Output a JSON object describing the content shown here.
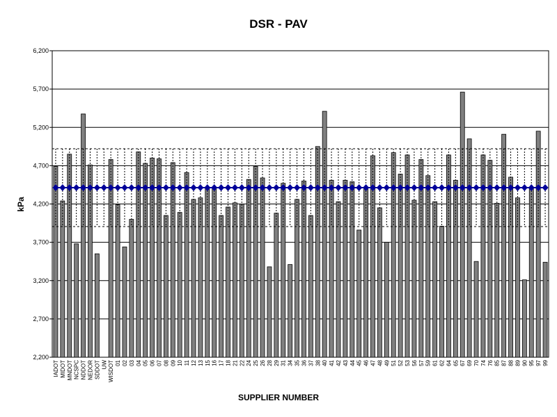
{
  "chart_data": {
    "type": "bar",
    "title": "DSR - PAV",
    "xlabel": "SUPPLIER NUMBER",
    "ylabel": "kPa",
    "categories": [
      "IADOT",
      "MIDOT",
      "MNDOT",
      "NCSPC",
      "NDDOT",
      "NEDOR",
      "SDDOT",
      "UW",
      "WISDOT",
      "01",
      "02",
      "03",
      "04",
      "05",
      "06",
      "07",
      "08",
      "09",
      "10",
      "11",
      "12",
      "13",
      "15",
      "16",
      "17",
      "18",
      "21",
      "22",
      "24",
      "25",
      "26",
      "28",
      "29",
      "31",
      "34",
      "35",
      "36",
      "37",
      "38",
      "40",
      "41",
      "42",
      "43",
      "44",
      "45",
      "46",
      "47",
      "48",
      "49",
      "51",
      "52",
      "53",
      "56",
      "57",
      "59",
      "61",
      "62",
      "64",
      "65",
      "67",
      "69",
      "70",
      "74",
      "76",
      "85",
      "87",
      "88",
      "89",
      "90",
      "95",
      "97",
      "99"
    ],
    "values": [
      4690,
      4240,
      4850,
      3680,
      5375,
      4710,
      3550,
      null,
      4780,
      4190,
      3640,
      4000,
      4880,
      4730,
      4800,
      4790,
      4050,
      4740,
      4090,
      4610,
      4260,
      4280,
      4420,
      4400,
      4050,
      4160,
      4215,
      4200,
      4520,
      4690,
      4540,
      3380,
      4080,
      4470,
      3410,
      4260,
      4500,
      4050,
      4950,
      5410,
      4510,
      4230,
      4510,
      4490,
      3860,
      4410,
      4830,
      4150,
      3700,
      4870,
      4590,
      4840,
      4250,
      4780,
      4570,
      4230,
      3910,
      4840,
      4510,
      5660,
      5050,
      3450,
      4840,
      4770,
      4210,
      5110,
      4550,
      4280,
      3210,
      4410,
      5150,
      3440
    ],
    "color": "#808080",
    "mean_line": {
      "value": 4413,
      "error": 508,
      "color": "#000099"
    },
    "ylim": [
      2200,
      6200
    ],
    "yticks": [
      {
        "value": 2200,
        "label": "2,200"
      },
      {
        "value": 2700,
        "label": "2,700"
      },
      {
        "value": 3200,
        "label": "3,200"
      },
      {
        "value": 3700,
        "label": "3,700"
      },
      {
        "value": 4200,
        "label": "4,200"
      },
      {
        "value": 4700,
        "label": "4,700"
      },
      {
        "value": 5200,
        "label": "5,200"
      },
      {
        "value": 5700,
        "label": "5,700"
      },
      {
        "value": 6200,
        "label": "6,200"
      }
    ],
    "grid": true
  }
}
